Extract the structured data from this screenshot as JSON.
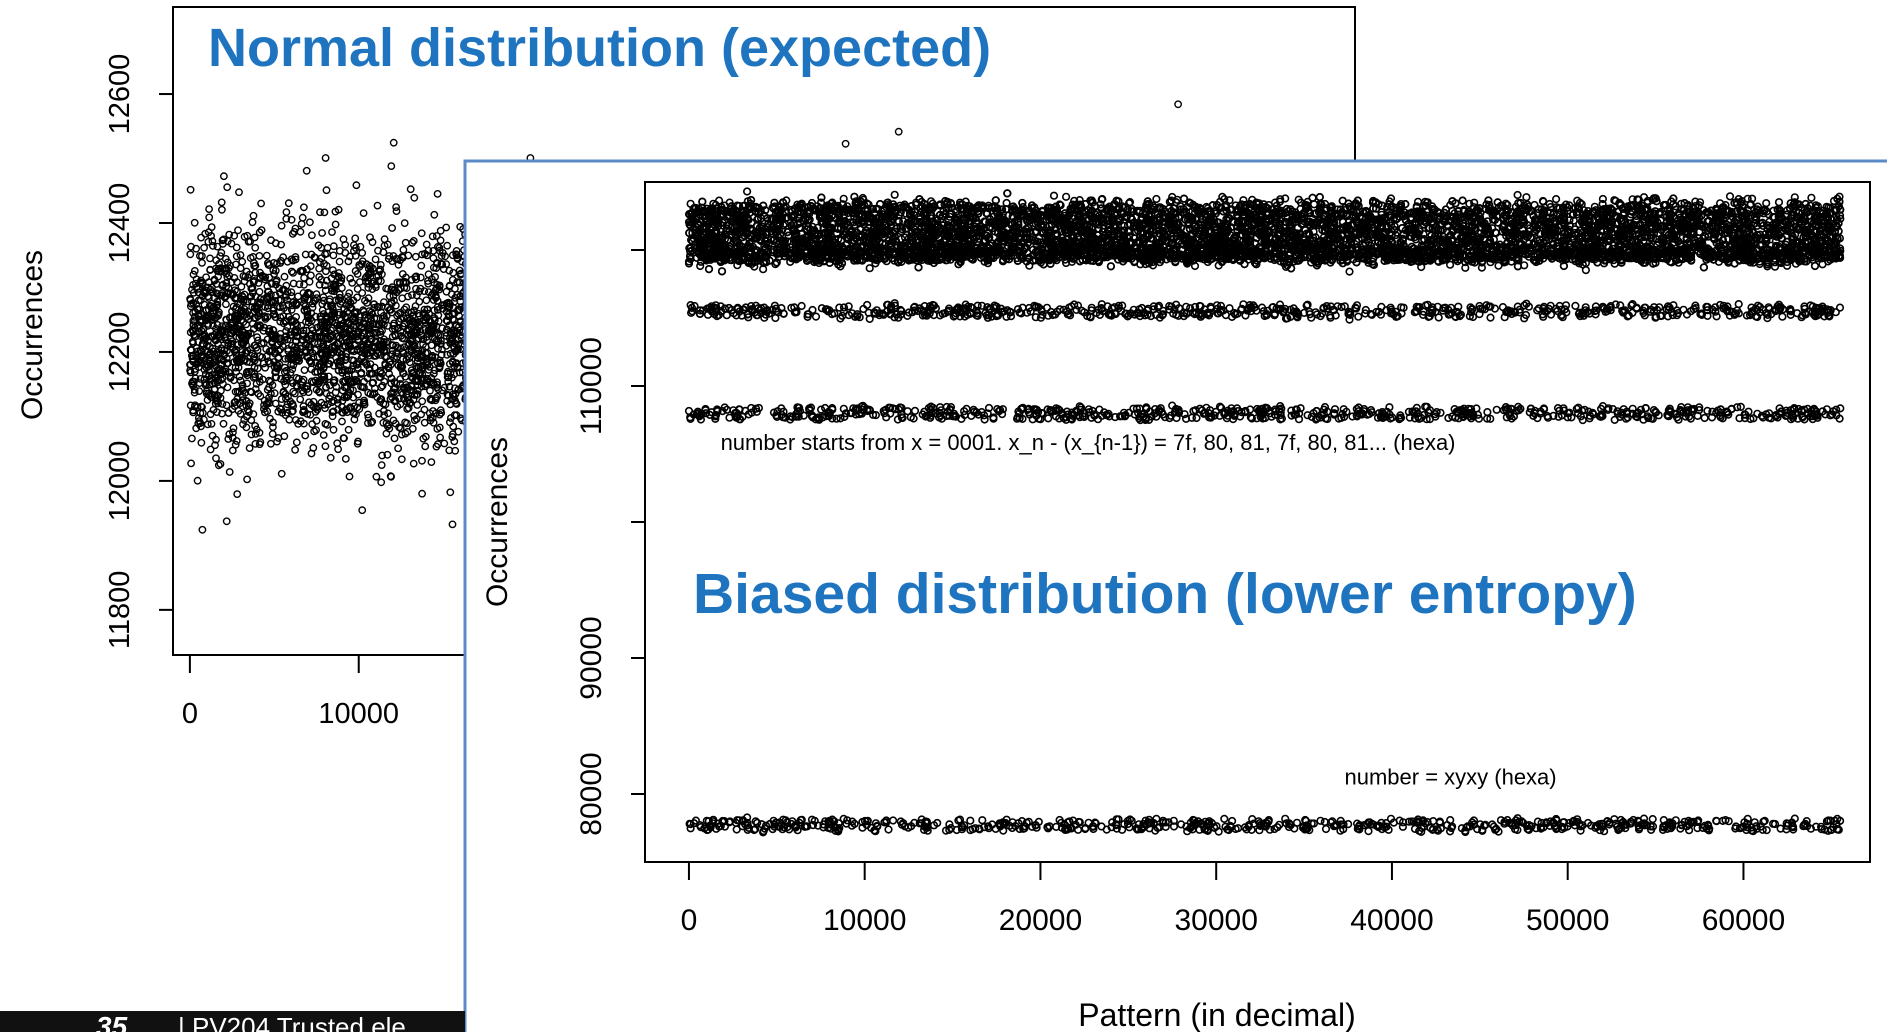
{
  "slide": {
    "page_number": "35",
    "footer_text": "| PV204 Trusted ele"
  },
  "colors": {
    "title_blue": "#1f74c0",
    "frame_blue": "#5b8bc7",
    "footer_bar": "#111111",
    "axis": "#000000"
  },
  "chart_data": [
    {
      "type": "scatter",
      "title": "Normal distribution (expected)",
      "xlabel": "",
      "ylabel": "Occurrences",
      "xlim": [
        -1000,
        69000
      ],
      "ylim": [
        11730,
        12735
      ],
      "x_ticks": [
        0,
        10000
      ],
      "x_tick_labels": [
        "0",
        "10000"
      ],
      "y_ticks": [
        11800,
        12000,
        12200,
        12400,
        12600
      ],
      "y_tick_labels": [
        "11800",
        "12000",
        "12200",
        "12400",
        "12600"
      ],
      "grid": false,
      "series": [
        {
          "x_range": [
            0,
            65535
          ],
          "mean": 12220,
          "sd": 85,
          "n_points": 9000,
          "marker": "open-circle"
        }
      ]
    },
    {
      "type": "scatter",
      "title": "Biased distribution (lower entropy)",
      "xlabel": "Pattern (in decimal)",
      "ylabel": "Occurrences",
      "xlim": [
        -2500,
        67200
      ],
      "ylim": [
        75000,
        125000
      ],
      "x_ticks": [
        0,
        10000,
        20000,
        30000,
        40000,
        50000,
        60000
      ],
      "x_tick_labels": [
        "0",
        "10000",
        "20000",
        "30000",
        "40000",
        "50000",
        "60000"
      ],
      "y_ticks": [
        80000,
        90000,
        100000,
        110000,
        120000
      ],
      "y_tick_labels": [
        "80000",
        "90000",
        "",
        "110000",
        ""
      ],
      "grid": false,
      "series": [
        {
          "x_range": [
            0,
            65535
          ],
          "center": 121300,
          "spread": 2100,
          "n_points": 7000,
          "marker": "open-circle"
        },
        {
          "x_range": [
            0,
            65535
          ],
          "center": 119700,
          "spread": 500,
          "n_points": 900,
          "marker": "open-circle"
        },
        {
          "x_range": [
            0,
            65535
          ],
          "center": 115500,
          "spread": 450,
          "n_points": 700,
          "marker": "open-circle"
        },
        {
          "x_range": [
            0,
            65535
          ],
          "center": 108000,
          "spread": 450,
          "n_points": 700,
          "marker": "open-circle"
        },
        {
          "x_range": [
            0,
            65535
          ],
          "center": 77700,
          "spread": 400,
          "n_points": 650,
          "marker": "open-circle"
        }
      ],
      "annotations": [
        {
          "text": "number starts from x = 0001. x_n - (x_{n-1}) = 7f, 80, 81, 7f, 80, 81... (hexa)",
          "x": 1800,
          "y": 105300
        },
        {
          "text": "number = xyxy (hexa)",
          "x": 37300,
          "y": 80700
        }
      ]
    }
  ]
}
